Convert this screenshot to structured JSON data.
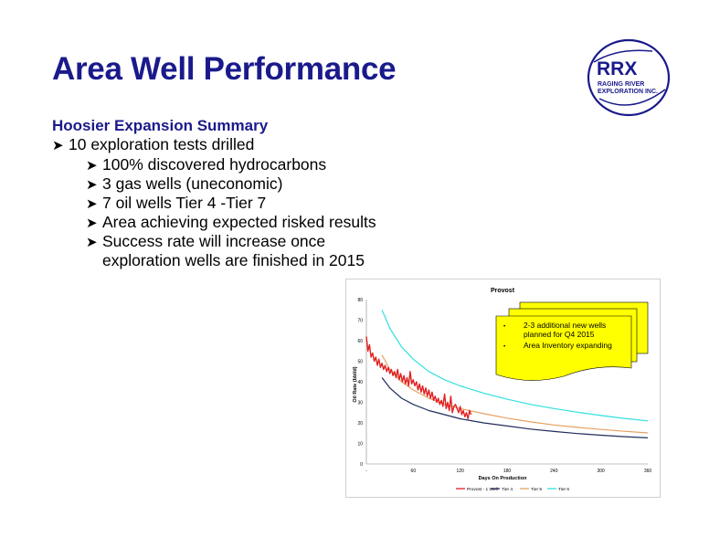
{
  "slide": {
    "title": "Area Well Performance",
    "subtitle": "Hoosier Expansion Summary",
    "bullets": [
      {
        "level": 1,
        "text": "10 exploration tests drilled"
      },
      {
        "level": 2,
        "text": "100% discovered hydrocarbons"
      },
      {
        "level": 2,
        "text": "3 gas wells (uneconomic)"
      },
      {
        "level": 2,
        "text": "7 oil wells Tier 4 -Tier 7"
      },
      {
        "level": 2,
        "text": "Area achieving expected risked results"
      },
      {
        "level": 2,
        "text": "Success rate will increase once"
      },
      {
        "level": 3,
        "text": "exploration wells are finished in 2015"
      }
    ]
  },
  "logo": {
    "line1": "RRX",
    "line2": "RAGING RIVER",
    "line3": "EXPLORATION INC.",
    "color": "#1a1a8c"
  },
  "chart_data": {
    "type": "line",
    "title": "Provost",
    "xlabel": "Days On Production",
    "ylabel": "Oil Rate (bbl/d)",
    "xlim": [
      0,
      360
    ],
    "ylim": [
      0,
      80
    ],
    "xticks": [
      "-",
      "60",
      "120",
      "180",
      "240",
      "300",
      "360"
    ],
    "yticks": [
      "0",
      "10",
      "20",
      "30",
      "40",
      "50",
      "60",
      "70",
      "80"
    ],
    "grid": false,
    "legend_position": "bottom",
    "series": [
      {
        "name": "Provost - 1 Well",
        "color": "#e02020",
        "x": [
          0,
          2,
          4,
          6,
          8,
          10,
          12,
          14,
          16,
          18,
          20,
          22,
          24,
          26,
          28,
          30,
          32,
          34,
          36,
          38,
          40,
          42,
          44,
          46,
          48,
          50,
          52,
          54,
          56,
          58,
          60,
          62,
          64,
          66,
          68,
          70,
          72,
          74,
          76,
          78,
          80,
          82,
          84,
          86,
          88,
          90,
          92,
          94,
          96,
          98,
          100,
          102,
          104,
          106,
          108,
          110,
          112,
          114,
          116,
          118,
          120,
          122,
          124,
          126,
          128,
          130,
          132,
          134
        ],
        "y": [
          62,
          55,
          58,
          52,
          54,
          50,
          52,
          48,
          51,
          47,
          49,
          46,
          48,
          45,
          47,
          44,
          46,
          43,
          45,
          42,
          46,
          41,
          44,
          40,
          43,
          39,
          42,
          38,
          45,
          39,
          41,
          38,
          40,
          36,
          39,
          35,
          38,
          34,
          37,
          33,
          36,
          32,
          35,
          31,
          33,
          30,
          32,
          29,
          31,
          28,
          34,
          27,
          30,
          26,
          33,
          25,
          28,
          29,
          27,
          25,
          28,
          24,
          26,
          23,
          25,
          22,
          26,
          24
        ]
      },
      {
        "name": "Tier 4",
        "color": "#1f2d5c",
        "x": [
          20,
          30,
          45,
          60,
          80,
          100,
          120,
          150,
          180,
          210,
          240,
          270,
          300,
          330,
          360
        ],
        "y": [
          42,
          37,
          32,
          29,
          26,
          24,
          22,
          20,
          18.5,
          17,
          15.8,
          14.8,
          14,
          13.3,
          12.7
        ]
      },
      {
        "name": "Tier 5",
        "color": "#e8a060",
        "x": [
          20,
          30,
          45,
          60,
          80,
          100,
          120,
          150,
          180,
          210,
          240,
          270,
          300,
          330,
          360
        ],
        "y": [
          53,
          46,
          40,
          36,
          32,
          29,
          27,
          24.5,
          22.3,
          20.5,
          19,
          17.8,
          16.8,
          15.9,
          15.1
        ]
      },
      {
        "name": "Tier 6",
        "color": "#30e0e0",
        "x": [
          20,
          30,
          45,
          60,
          80,
          100,
          120,
          150,
          180,
          210,
          240,
          270,
          300,
          330,
          360
        ],
        "y": [
          75,
          66,
          57,
          51,
          45,
          41,
          38,
          34.5,
          31.5,
          29,
          27,
          25.2,
          23.6,
          22.2,
          21
        ]
      }
    ],
    "annotation": {
      "bullets": [
        "2-3 additional new wells planned for Q4 2015",
        "Area Inventory expanding"
      ],
      "fill": "#ffff00"
    }
  }
}
